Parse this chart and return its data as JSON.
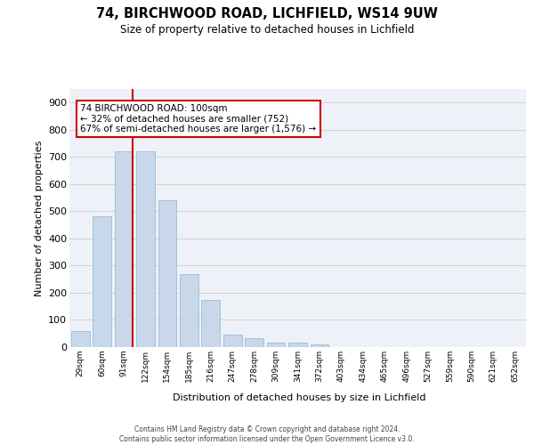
{
  "title": "74, BIRCHWOOD ROAD, LICHFIELD, WS14 9UW",
  "subtitle": "Size of property relative to detached houses in Lichfield",
  "xlabel": "Distribution of detached houses by size in Lichfield",
  "ylabel": "Number of detached properties",
  "bar_color": "#c8d8ea",
  "bar_edgecolor": "#8ab4d0",
  "bg_color": "#eef2f8",
  "grid_color": "#cccccc",
  "categories": [
    "29sqm",
    "60sqm",
    "91sqm",
    "122sqm",
    "154sqm",
    "185sqm",
    "216sqm",
    "247sqm",
    "278sqm",
    "309sqm",
    "341sqm",
    "372sqm",
    "403sqm",
    "434sqm",
    "465sqm",
    "496sqm",
    "527sqm",
    "559sqm",
    "590sqm",
    "621sqm",
    "652sqm"
  ],
  "values": [
    60,
    480,
    720,
    720,
    540,
    270,
    172,
    47,
    32,
    15,
    15,
    10,
    0,
    0,
    0,
    0,
    0,
    0,
    0,
    0,
    0
  ],
  "ylim": [
    0,
    950
  ],
  "yticks": [
    0,
    100,
    200,
    300,
    400,
    500,
    600,
    700,
    800,
    900
  ],
  "annotation_text": "74 BIRCHWOOD ROAD: 100sqm\n← 32% of detached houses are smaller (752)\n67% of semi-detached houses are larger (1,576) →",
  "ann_bg": "#ffffff",
  "ann_edge": "#cc0000",
  "vline_color": "#cc0000",
  "vline_x_index": 2,
  "bar_width": 0.85,
  "footer": "Contains HM Land Registry data © Crown copyright and database right 2024.\nContains public sector information licensed under the Open Government Licence v3.0."
}
